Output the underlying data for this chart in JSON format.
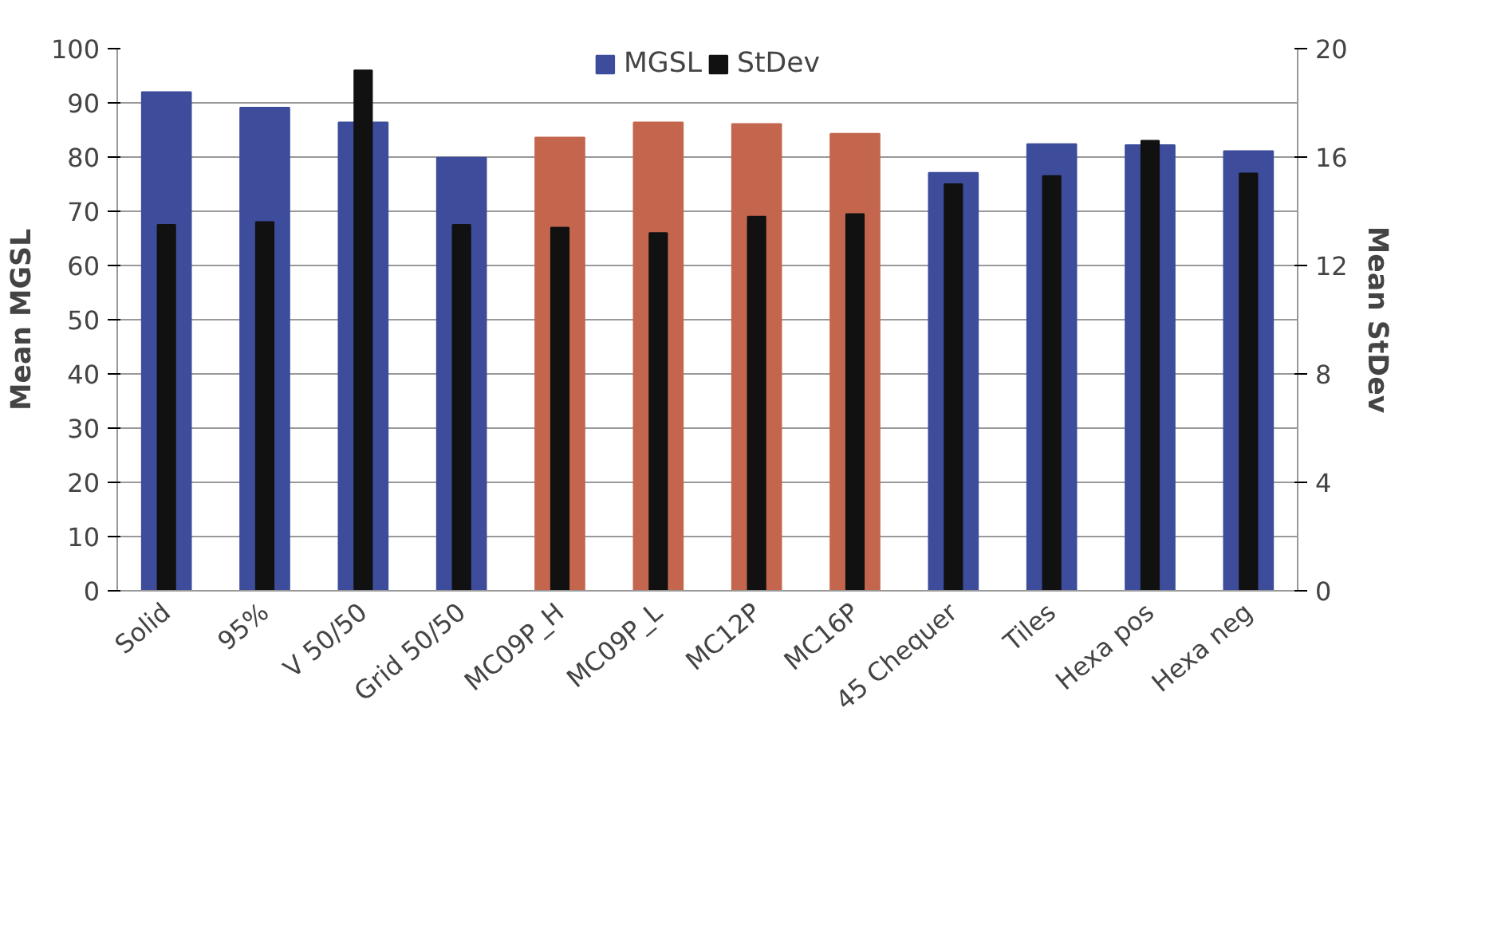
{
  "chart_data": {
    "type": "bar",
    "categories": [
      "Solid",
      "95%",
      "V 50/50",
      "Grid 50/50",
      "MC09P_H",
      "MC09P_L",
      "MC12P",
      "MC16P",
      "45 Chequer",
      "Tiles",
      "Hexa pos",
      "Hexa neg"
    ],
    "series": [
      {
        "name": "MGSL",
        "color": "#3d4d9b",
        "colors": [
          "#3d4d9b",
          "#3d4d9b",
          "#3d4d9b",
          "#3d4d9b",
          "#c4664e",
          "#c4664e",
          "#c4664e",
          "#c4664e",
          "#3d4d9b",
          "#3d4d9b",
          "#3d4d9b",
          "#3d4d9b"
        ],
        "values": [
          92.0,
          89.1,
          86.4,
          79.9,
          83.6,
          86.4,
          86.1,
          84.3,
          77.1,
          82.4,
          82.2,
          81.1
        ]
      },
      {
        "name": "StDev",
        "color": "#111111",
        "axis": "y2",
        "values": [
          13.5,
          13.6,
          19.2,
          13.5,
          13.4,
          13.2,
          13.8,
          13.9,
          15.0,
          15.3,
          16.6,
          15.4
        ]
      }
    ],
    "ylabel": "Mean MGSL",
    "y2label": "Mean StDev",
    "ylim": [
      0,
      100
    ],
    "yticks": [
      0,
      10,
      20,
      30,
      40,
      50,
      60,
      70,
      80,
      90,
      100
    ],
    "y2lim": [
      0,
      20
    ],
    "y2ticks": [
      0,
      4,
      8,
      12,
      16,
      20
    ],
    "grid": "y",
    "legend": "top"
  }
}
